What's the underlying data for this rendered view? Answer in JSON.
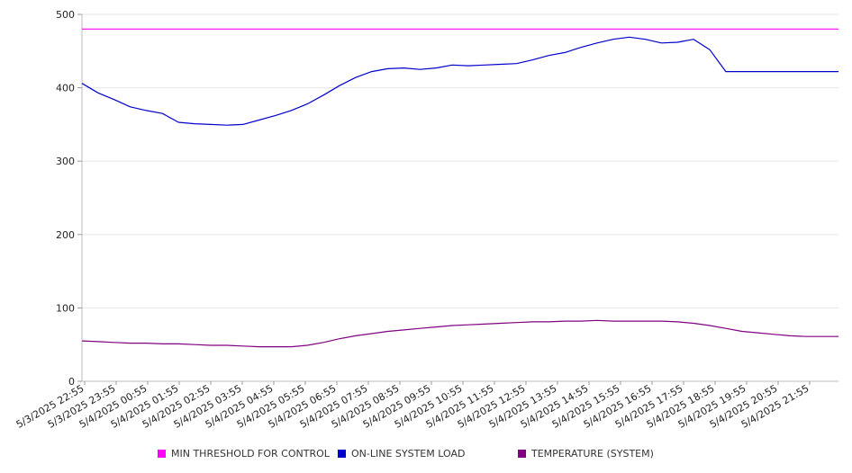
{
  "chart_data": {
    "type": "line",
    "title": "",
    "xlabel": "",
    "ylabel": "",
    "ylim": [
      0,
      500
    ],
    "y_ticks": [
      0,
      100,
      200,
      300,
      400,
      500
    ],
    "grid": "horizontal",
    "legend_position": "bottom",
    "x_tick_labels": [
      "5/3/2025 22:55",
      "5/3/2025 23:55",
      "5/4/2025 00:55",
      "5/4/2025 01:55",
      "5/4/2025 02:55",
      "5/4/2025 03:55",
      "5/4/2025 04:55",
      "5/4/2025 05:55",
      "5/4/2025 06:55",
      "5/4/2025 07:55",
      "5/4/2025 08:55",
      "5/4/2025 09:55",
      "5/4/2025 10:55",
      "5/4/2025 11:55",
      "5/4/2025 12:55",
      "5/4/2025 13:55",
      "5/4/2025 14:55",
      "5/4/2025 15:55",
      "5/4/2025 16:55",
      "5/4/2025 17:55",
      "5/4/2025 18:55",
      "5/4/2025 19:55",
      "5/4/2025 20:55",
      "5/4/2025 21:55"
    ],
    "x": [
      "5/3/2025 22:55",
      "5/3/2025 23:25",
      "5/3/2025 23:55",
      "5/4/2025 00:25",
      "5/4/2025 00:55",
      "5/4/2025 01:25",
      "5/4/2025 01:55",
      "5/4/2025 02:25",
      "5/4/2025 02:55",
      "5/4/2025 03:25",
      "5/4/2025 03:55",
      "5/4/2025 04:25",
      "5/4/2025 04:55",
      "5/4/2025 05:25",
      "5/4/2025 05:55",
      "5/4/2025 06:25",
      "5/4/2025 06:55",
      "5/4/2025 07:25",
      "5/4/2025 07:55",
      "5/4/2025 08:25",
      "5/4/2025 08:55",
      "5/4/2025 09:25",
      "5/4/2025 09:55",
      "5/4/2025 10:25",
      "5/4/2025 10:55",
      "5/4/2025 11:25",
      "5/4/2025 11:55",
      "5/4/2025 12:25",
      "5/4/2025 12:55",
      "5/4/2025 13:25",
      "5/4/2025 13:55",
      "5/4/2025 14:25",
      "5/4/2025 14:55",
      "5/4/2025 15:25",
      "5/4/2025 15:55",
      "5/4/2025 16:25",
      "5/4/2025 16:55",
      "5/4/2025 17:25",
      "5/4/2025 17:55",
      "5/4/2025 18:25",
      "5/4/2025 18:55",
      "5/4/2025 19:25",
      "5/4/2025 19:55",
      "5/4/2025 20:25",
      "5/4/2025 20:55",
      "5/4/2025 21:25",
      "5/4/2025 21:55",
      "5/4/2025 22:25"
    ],
    "series": [
      {
        "name": "MIN THRESHOLD FOR CONTROL",
        "color": "#ff00ff",
        "values": [
          480,
          480,
          480,
          480,
          480,
          480,
          480,
          480,
          480,
          480,
          480,
          480,
          480,
          480,
          480,
          480,
          480,
          480,
          480,
          480,
          480,
          480,
          480,
          480,
          480,
          480,
          480,
          480,
          480,
          480,
          480,
          480,
          480,
          480,
          480,
          480,
          480,
          480,
          480,
          480,
          480,
          480,
          480,
          480,
          480,
          480,
          480,
          480
        ]
      },
      {
        "name": "ON-LINE SYSTEM LOAD",
        "color": "#0000cc",
        "values": [
          406,
          393,
          384,
          374,
          369,
          365,
          353,
          351,
          350,
          349,
          350,
          356,
          362,
          369,
          378,
          390,
          403,
          414,
          422,
          426,
          427,
          425,
          427,
          431,
          430,
          431,
          432,
          433,
          438,
          444,
          448,
          455,
          461,
          466,
          469,
          466,
          461,
          462,
          466,
          452,
          422,
          422,
          422,
          422,
          422,
          422,
          422,
          422
        ]
      },
      {
        "name": "TEMPERATURE (SYSTEM)",
        "color": "#800080",
        "values": [
          55,
          54,
          53,
          52,
          52,
          51,
          51,
          50,
          49,
          49,
          48,
          47,
          47,
          47,
          49,
          53,
          58,
          62,
          65,
          68,
          70,
          72,
          74,
          76,
          77,
          78,
          79,
          80,
          81,
          81,
          82,
          82,
          83,
          82,
          82,
          82,
          82,
          81,
          79,
          76,
          72,
          68,
          66,
          64,
          62,
          61,
          61,
          61
        ]
      }
    ]
  }
}
